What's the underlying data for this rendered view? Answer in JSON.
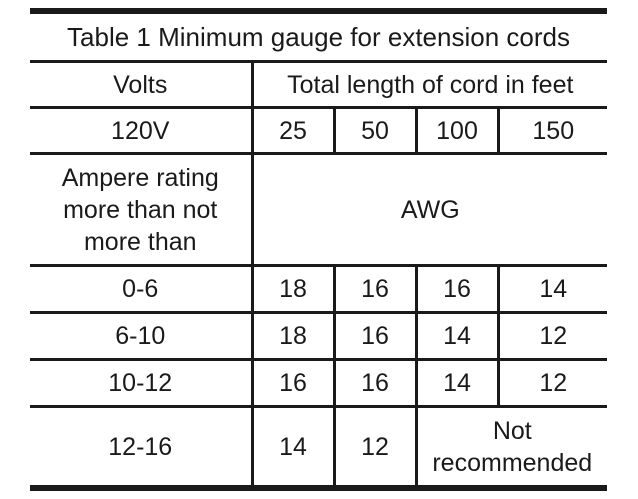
{
  "table": {
    "title": "Table 1 Minimum gauge for extension cords",
    "header": {
      "volts_label": "Volts",
      "length_label": "Total length of cord in feet"
    },
    "voltage_row": {
      "voltage": "120V",
      "lengths": [
        "25",
        "50",
        "100",
        "150"
      ]
    },
    "ampere_row": {
      "label_line1": "Ampere rating",
      "label_line2": "more than not",
      "label_line3": "more than",
      "unit": "AWG"
    },
    "rows": [
      {
        "range": "0-6",
        "values": [
          "18",
          "16",
          "16",
          "14"
        ]
      },
      {
        "range": "6-10",
        "values": [
          "18",
          "16",
          "14",
          "12"
        ]
      },
      {
        "range": "10-12",
        "values": [
          "16",
          "16",
          "14",
          "12"
        ]
      }
    ],
    "last_row": {
      "range": "12-16",
      "values": [
        "14",
        "12"
      ],
      "note_line1": "Not",
      "note_line2": "recommended"
    }
  }
}
